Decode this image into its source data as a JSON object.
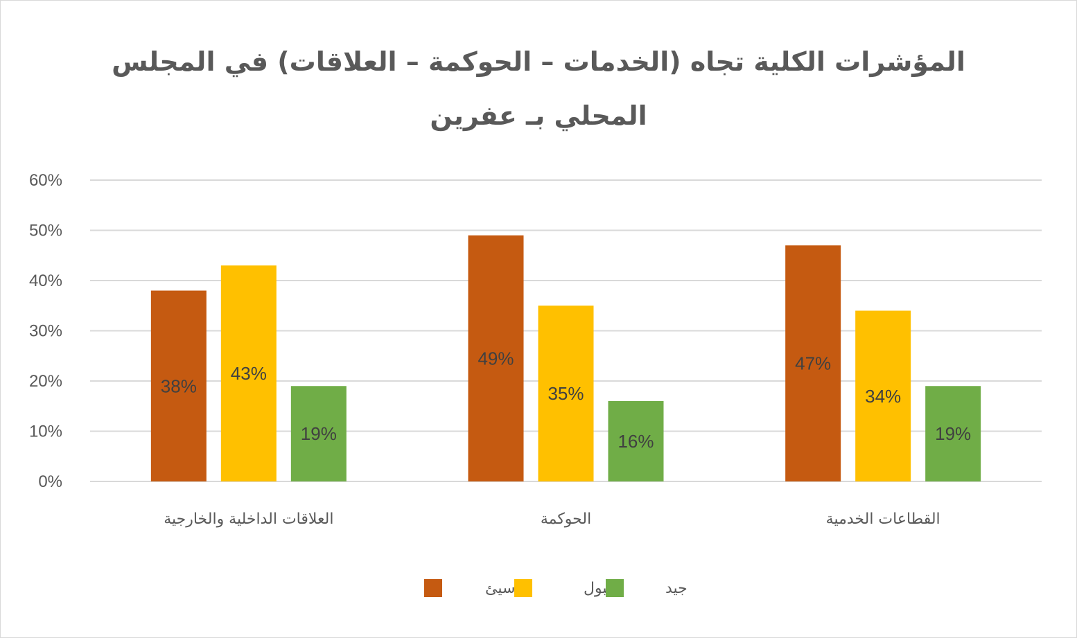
{
  "chart_data": {
    "type": "bar",
    "title_line1": "المؤشرات الكلية تجاه (الخدمات – الحوكمة – العلاقات) في المجلس",
    "title_line2": "المحلي بـ عفرين",
    "categories": [
      "القطاعات الخدمية",
      "الحوكمة",
      "العلاقات الداخلية والخارجية"
    ],
    "series": [
      {
        "name": "سيئ",
        "color": "#C55A11",
        "values": [
          47,
          49,
          38
        ]
      },
      {
        "name": "مقبول",
        "color": "#FFC000",
        "values": [
          34,
          35,
          43
        ]
      },
      {
        "name": "جيد",
        "color": "#70AD47",
        "values": [
          19,
          16,
          19
        ]
      }
    ],
    "ylim": [
      0,
      60
    ],
    "yticks": [
      0,
      10,
      20,
      30,
      40,
      50,
      60
    ],
    "ytick_labels": [
      "0%",
      "10%",
      "20%",
      "30%",
      "40%",
      "50%",
      "60%"
    ],
    "value_suffix": "%",
    "grid": true,
    "legend_position": "bottom-center",
    "category_order": "right-to-left"
  }
}
